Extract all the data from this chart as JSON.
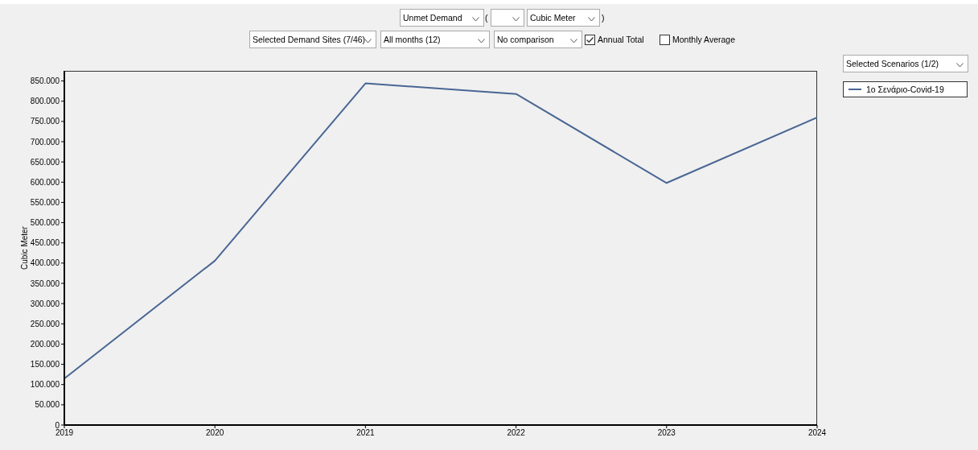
{
  "chart_data": {
    "type": "line",
    "ylabel": "Cubic Meter",
    "annotations": [
      "Unmet Demand",
      "(",
      "Cubic Meter",
      ")",
      "Selected Demand Sites (7/46)",
      "All months (12)",
      "No comparison",
      "Annual Total",
      "Monthly Average",
      "Selected Scenarios (1/2)"
    ],
    "x": [
      2019,
      2020,
      2021,
      2022,
      2023,
      2024
    ],
    "series": [
      {
        "name": "1o Σενάριο-Covid-19",
        "color": "#4a6694",
        "values": [
          115000,
          406000,
          844000,
          818000,
          598000,
          760000
        ]
      }
    ],
    "xlim": [
      2019,
      2024
    ],
    "xticks": [
      2019,
      2020,
      2021,
      2022,
      2023,
      2024
    ],
    "ylim": [
      0,
      875000
    ],
    "yticks": [
      0,
      {
        "value": 50000,
        "label": "50.000"
      },
      {
        "value": 100000,
        "label": "100.000"
      },
      {
        "value": 150000,
        "label": "150.000"
      },
      {
        "value": 200000,
        "label": "200.000"
      },
      {
        "value": 250000,
        "label": "250.000"
      },
      {
        "value": 300000,
        "label": "300.000"
      },
      {
        "value": 350000,
        "label": "350.000"
      },
      {
        "value": 400000,
        "label": "400.000"
      },
      {
        "value": 450000,
        "label": "450.000"
      },
      {
        "value": 500000,
        "label": "500.000"
      },
      {
        "value": 550000,
        "label": "550.000"
      },
      {
        "value": 600000,
        "label": "600.000"
      },
      {
        "value": 650000,
        "label": "650.000"
      },
      {
        "value": 700000,
        "label": "700.000"
      },
      {
        "value": 750000,
        "label": "750.000"
      },
      {
        "value": 800000,
        "label": "800.000"
      },
      {
        "value": 850000,
        "label": "850.000"
      }
    ],
    "grid": false,
    "legend": "right",
    "marker": "none",
    "line_style": "solid"
  }
}
